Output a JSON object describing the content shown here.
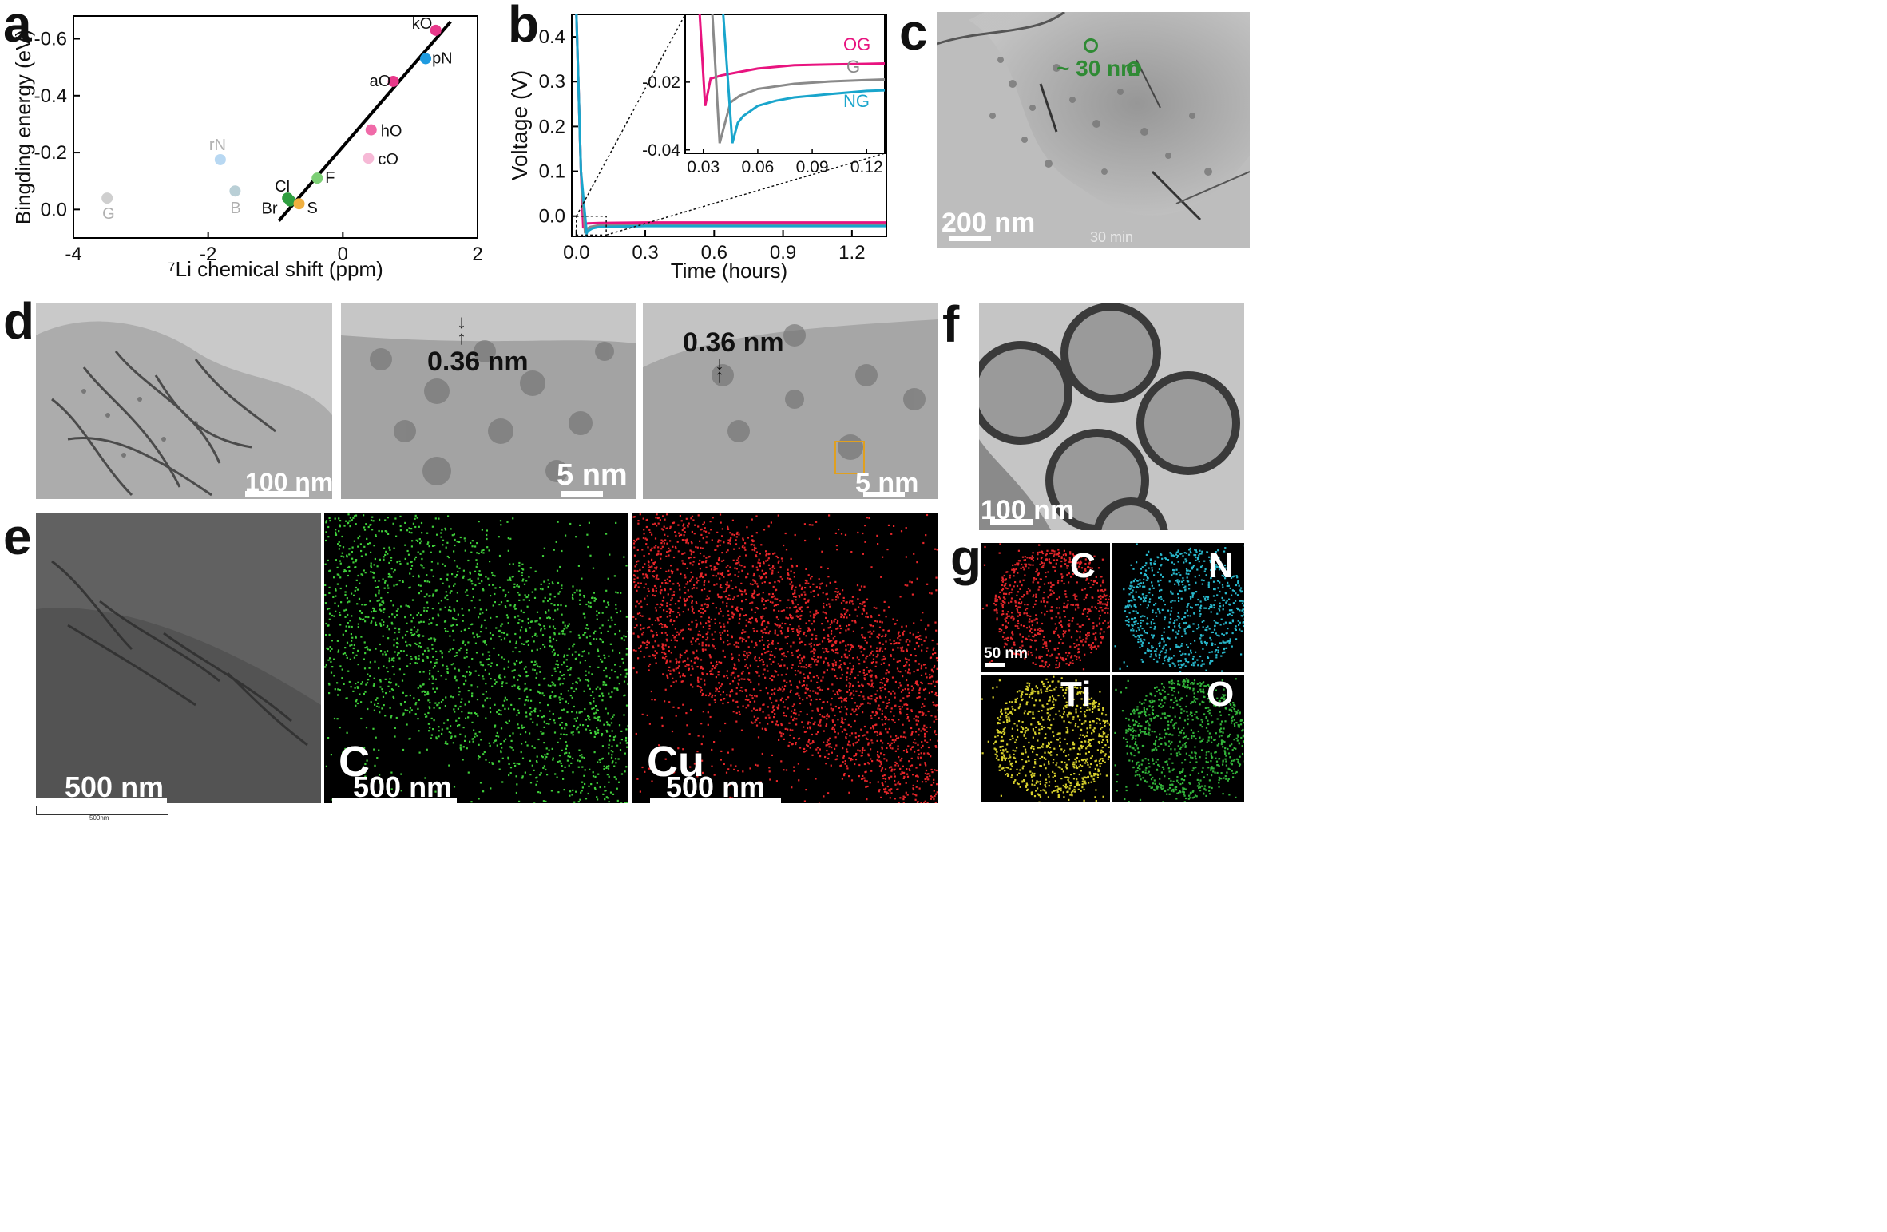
{
  "panel_letters": [
    "a",
    "b",
    "c",
    "d",
    "e",
    "f",
    "g"
  ],
  "chart_data": [
    {
      "type": "scatter",
      "panel": "a",
      "title": "",
      "xlabel": "⁷Li chemical shift (ppm)",
      "ylabel": "Bingding energy (eV)",
      "xlim": [
        -4,
        2
      ],
      "ylim": [
        0.1,
        -0.68
      ],
      "y_inverted": true,
      "x_ticks": [
        "-4",
        "-2",
        "0",
        "2"
      ],
      "x_tick_values": [
        -4,
        -2,
        0,
        2
      ],
      "y_ticks": [
        "-0.6",
        "-0.4",
        "-0.2",
        "0.0"
      ],
      "y_tick_values": [
        -0.6,
        -0.4,
        -0.2,
        0.0
      ],
      "points": [
        {
          "label": "kO",
          "x": 1.38,
          "y": -0.63,
          "color": "#e8388a"
        },
        {
          "label": "pN",
          "x": 1.23,
          "y": -0.53,
          "color": "#1e9be0"
        },
        {
          "label": "aO",
          "x": 0.75,
          "y": -0.45,
          "color": "#e8388a"
        },
        {
          "label": "hO",
          "x": 0.42,
          "y": -0.28,
          "color": "#f06aa8"
        },
        {
          "label": "cO",
          "x": 0.38,
          "y": -0.18,
          "color": "#f6b9d6"
        },
        {
          "label": "F",
          "x": -0.38,
          "y": -0.11,
          "color": "#7ccf75"
        },
        {
          "label": "Cl",
          "x": -0.82,
          "y": -0.04,
          "color": "#2e9e3f"
        },
        {
          "label": "Br",
          "x": -0.78,
          "y": -0.03,
          "color": "#2e9e3f"
        },
        {
          "label": "S",
          "x": -0.65,
          "y": -0.02,
          "color": "#f0b040"
        },
        {
          "label": "rN",
          "x": -1.82,
          "y": -0.175,
          "color": "#b8d8f2"
        },
        {
          "label": "B",
          "x": -1.6,
          "y": -0.065,
          "color": "#b9cfd6"
        },
        {
          "label": "G",
          "x": -3.5,
          "y": -0.04,
          "color": "#cfcfcf"
        }
      ],
      "label_colors": {
        "light": "#b0b0b0",
        "dark": "#111111"
      },
      "fit_line": {
        "x": [
          -0.95,
          1.6
        ],
        "y": [
          0.04,
          -0.66
        ],
        "color": "#000000"
      }
    },
    {
      "type": "line",
      "panel": "b",
      "title": "",
      "xlabel": "Time (hours)",
      "ylabel": "Voltage (V)",
      "xlim": [
        -0.02,
        1.35
      ],
      "ylim": [
        -0.045,
        0.45
      ],
      "x_ticks": [
        "0.0",
        "0.3",
        "0.6",
        "0.9",
        "1.2"
      ],
      "x_tick_values": [
        0.0,
        0.3,
        0.6,
        0.9,
        1.2
      ],
      "y_ticks": [
        "0.0",
        "0.1",
        "0.2",
        "0.3",
        "0.4"
      ],
      "y_tick_values": [
        0.0,
        0.1,
        0.2,
        0.3,
        0.4
      ],
      "series": [
        {
          "name": "OG",
          "color": "#e8137f",
          "x": [
            0.0,
            0.02,
            0.03,
            0.035,
            0.05,
            0.1,
            0.3,
            0.6,
            0.9,
            1.2,
            1.35
          ],
          "y": [
            0.45,
            0.1,
            -0.027,
            -0.018,
            -0.016,
            -0.015,
            -0.014,
            -0.014,
            -0.014,
            -0.014,
            -0.014
          ]
        },
        {
          "name": "G",
          "color": "#8a8a8a",
          "x": [
            0.0,
            0.02,
            0.038,
            0.042,
            0.06,
            0.1,
            0.3,
            0.6,
            0.9,
            1.2,
            1.35
          ],
          "y": [
            0.45,
            0.1,
            -0.038,
            -0.03,
            -0.024,
            -0.02,
            -0.019,
            -0.019,
            -0.019,
            -0.019,
            -0.019
          ]
        },
        {
          "name": "NG",
          "color": "#19a5cc",
          "x": [
            0.0,
            0.02,
            0.045,
            0.05,
            0.07,
            0.1,
            0.3,
            0.6,
            0.9,
            1.2,
            1.35
          ],
          "y": [
            0.45,
            0.1,
            -0.038,
            -0.033,
            -0.027,
            -0.024,
            -0.022,
            -0.022,
            -0.022,
            -0.022,
            -0.022
          ]
        }
      ],
      "inset": {
        "xlim": [
          0.02,
          0.13
        ],
        "ylim": [
          -0.041,
          -0.0
        ],
        "x_ticks": [
          "0.03",
          "0.06",
          "0.09",
          "0.12"
        ],
        "x_tick_values": [
          0.03,
          0.06,
          0.09,
          0.12
        ],
        "y_ticks": [
          "-0.02",
          "-0.04"
        ],
        "y_tick_values": [
          -0.02,
          -0.04
        ],
        "series": [
          {
            "name": "OG",
            "color": "#e8137f",
            "x": [
              0.028,
              0.031,
              0.034,
              0.04,
              0.05,
              0.06,
              0.08,
              0.1,
              0.12,
              0.13
            ],
            "y": [
              0.0,
              -0.027,
              -0.019,
              -0.018,
              -0.017,
              -0.016,
              -0.015,
              -0.0148,
              -0.0146,
              -0.0145
            ]
          },
          {
            "name": "G",
            "color": "#8a8a8a",
            "x": [
              0.035,
              0.039,
              0.042,
              0.045,
              0.05,
              0.06,
              0.08,
              0.1,
              0.12,
              0.13
            ],
            "y": [
              0.0,
              -0.038,
              -0.032,
              -0.026,
              -0.024,
              -0.022,
              -0.0205,
              -0.0198,
              -0.0194,
              -0.0192
            ]
          },
          {
            "name": "NG",
            "color": "#19a5cc",
            "x": [
              0.041,
              0.046,
              0.049,
              0.052,
              0.06,
              0.07,
              0.08,
              0.1,
              0.12,
              0.13
            ],
            "y": [
              0.0,
              -0.038,
              -0.032,
              -0.03,
              -0.027,
              -0.0255,
              -0.0245,
              -0.0235,
              -0.0226,
              -0.0224
            ]
          }
        ]
      }
    }
  ],
  "panel_c": {
    "scale_label": "200 nm",
    "annotation": "~ 30 nm",
    "corner_text": "30 min"
  },
  "panel_d": {
    "images": [
      {
        "scale_label": "100 nm"
      },
      {
        "scale_label": "5 nm",
        "spacing_label": "0.36 nm"
      },
      {
        "scale_label": "5 nm",
        "spacing_label": "0.36 nm"
      }
    ]
  },
  "panel_e": {
    "images": [
      {
        "scale_label": "500 nm",
        "ruler_label": "500nm"
      },
      {
        "scale_label": "500 nm",
        "element": "C"
      },
      {
        "scale_label": "500 nm",
        "element": "Cu"
      }
    ]
  },
  "panel_f": {
    "scale_label": "100 nm"
  },
  "panel_g": {
    "scale_label": "50 nm",
    "elements": [
      "C",
      "N",
      "Ti",
      "O"
    ]
  }
}
